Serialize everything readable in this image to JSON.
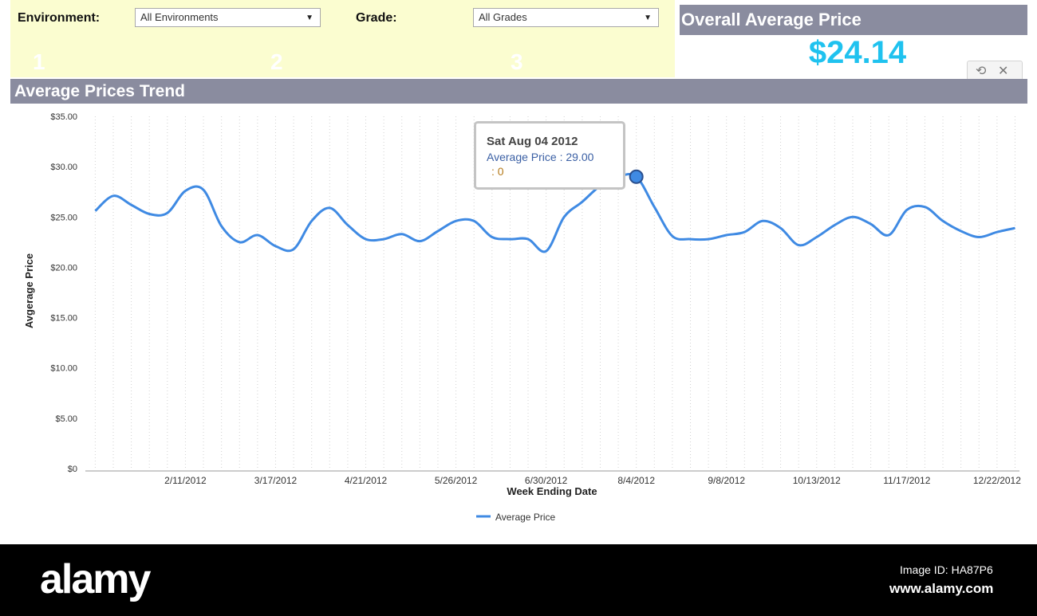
{
  "filters": {
    "environment_label": "Environment:",
    "environment_value": "All Environments",
    "grade_label": "Grade:",
    "grade_value": "All Grades",
    "ghost_digits": [
      "1",
      "2",
      "3"
    ]
  },
  "overall": {
    "title": "Overall Average Price",
    "value": "$24.14"
  },
  "widget_buttons": {
    "refresh_icon": "refresh-icon",
    "close_icon": "close-icon"
  },
  "chart_title": "Average Prices Trend",
  "chart_data": {
    "type": "line",
    "xlabel": "Week Ending Date",
    "ylabel": "Avgerage Price",
    "ylim": [
      0,
      35
    ],
    "yticks": [
      "$0",
      "$5.00",
      "$10.00",
      "$15.00",
      "$20.00",
      "$25.00",
      "$30.00",
      "$35.00"
    ],
    "xticks": [
      "2/11/2012",
      "3/17/2012",
      "4/21/2012",
      "5/26/2012",
      "6/30/2012",
      "8/4/2012",
      "9/8/2012",
      "10/13/2012",
      "11/17/2012",
      "12/22/2012"
    ],
    "grid": "vertical dotted",
    "legend_position": "bottom-center",
    "series": [
      {
        "name": "Average Price",
        "color": "#3f8ae3",
        "x": [
          "1/7/2012",
          "1/14/2012",
          "1/21/2012",
          "1/28/2012",
          "2/4/2012",
          "2/11/2012",
          "2/18/2012",
          "2/25/2012",
          "3/3/2012",
          "3/10/2012",
          "3/17/2012",
          "3/24/2012",
          "3/31/2012",
          "4/7/2012",
          "4/14/2012",
          "4/21/2012",
          "4/28/2012",
          "5/5/2012",
          "5/12/2012",
          "5/19/2012",
          "5/26/2012",
          "6/2/2012",
          "6/9/2012",
          "6/16/2012",
          "6/23/2012",
          "6/30/2012",
          "7/7/2012",
          "7/14/2012",
          "7/21/2012",
          "7/28/2012",
          "8/4/2012",
          "8/11/2012",
          "8/18/2012",
          "8/25/2012",
          "9/1/2012",
          "9/8/2012",
          "9/15/2012",
          "9/22/2012",
          "9/29/2012",
          "10/6/2012",
          "10/13/2012",
          "10/20/2012",
          "10/27/2012",
          "11/3/2012",
          "11/10/2012",
          "11/17/2012",
          "11/24/2012",
          "12/1/2012",
          "12/8/2012",
          "12/15/2012",
          "12/22/2012",
          "12/29/2012"
        ],
        "values": [
          25.6,
          27.1,
          26.2,
          25.3,
          25.4,
          27.6,
          27.7,
          24.1,
          22.5,
          23.2,
          22.1,
          21.8,
          24.6,
          25.9,
          24.2,
          22.8,
          22.8,
          23.3,
          22.6,
          23.6,
          24.6,
          24.6,
          23.0,
          22.8,
          22.8,
          21.6,
          25.0,
          26.5,
          28.1,
          29.0,
          29.0,
          26.0,
          23.1,
          22.8,
          22.8,
          23.2,
          23.5,
          24.6,
          23.9,
          22.2,
          23.0,
          24.2,
          25.0,
          24.3,
          23.2,
          25.7,
          26.0,
          24.6,
          23.6,
          23.0,
          23.5,
          23.9
        ]
      }
    ],
    "tooltip": {
      "date": "Sat Aug 04 2012",
      "series_label": "Average Price :",
      "value": "29.00",
      "extra": ":  0",
      "index": 30
    }
  },
  "footer": {
    "logo": "alamy",
    "image_code": "Image ID: HA87P6",
    "url": "www.alamy.com"
  }
}
